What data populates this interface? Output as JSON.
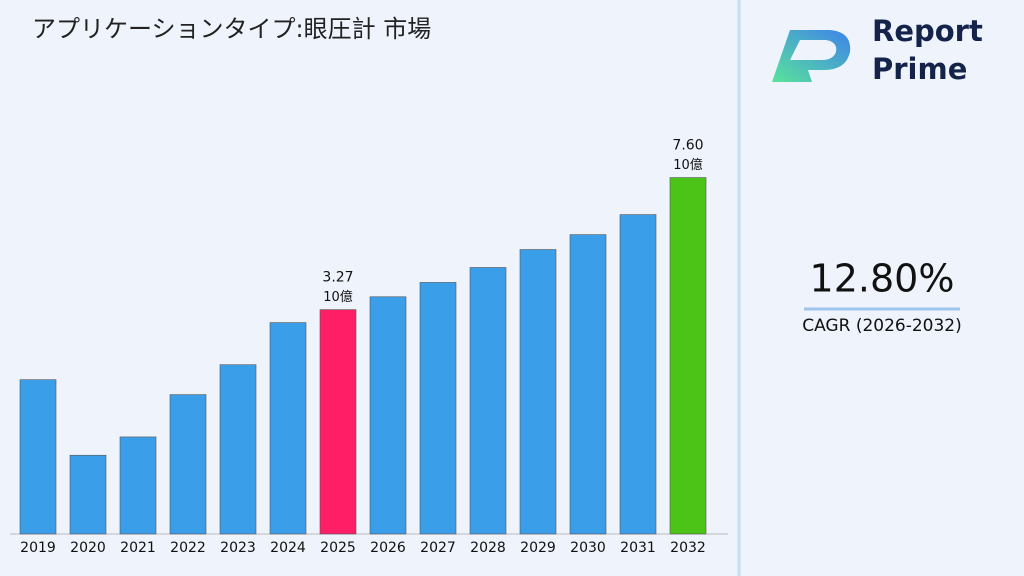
{
  "chart_data": {
    "type": "bar",
    "title": "アプリケーションタイプ:眼圧計 市場",
    "categories": [
      "2019",
      "2020",
      "2021",
      "2022",
      "2023",
      "2024",
      "2025",
      "2026",
      "2027",
      "2028",
      "2029",
      "2030",
      "2031",
      "2032"
    ],
    "values": [
      2.09,
      1.29,
      1.45,
      1.9,
      2.3,
      3.01,
      3.27,
      3.55,
      3.89,
      4.28,
      4.8,
      5.28,
      6.0,
      7.6
    ],
    "value_labels": [
      null,
      null,
      null,
      null,
      null,
      null,
      "3.27",
      null,
      null,
      null,
      null,
      null,
      null,
      "7.60"
    ],
    "value_unit": "10億",
    "colors": [
      "#3a9fe8",
      "#3a9fe8",
      "#3a9fe8",
      "#3a9fe8",
      "#3a9fe8",
      "#3a9fe8",
      "#ff1f66",
      "#3a9fe8",
      "#3a9fe8",
      "#3a9fe8",
      "#3a9fe8",
      "#3a9fe8",
      "#3a9fe8",
      "#4cc417"
    ],
    "ylim": [
      0.78,
      10.3
    ],
    "log_scale": true,
    "grid": false
  },
  "sidebar": {
    "brand": [
      "Report",
      "Prime"
    ],
    "cagr_value": "12.80%",
    "cagr_label": "CAGR (2026-2032)"
  }
}
